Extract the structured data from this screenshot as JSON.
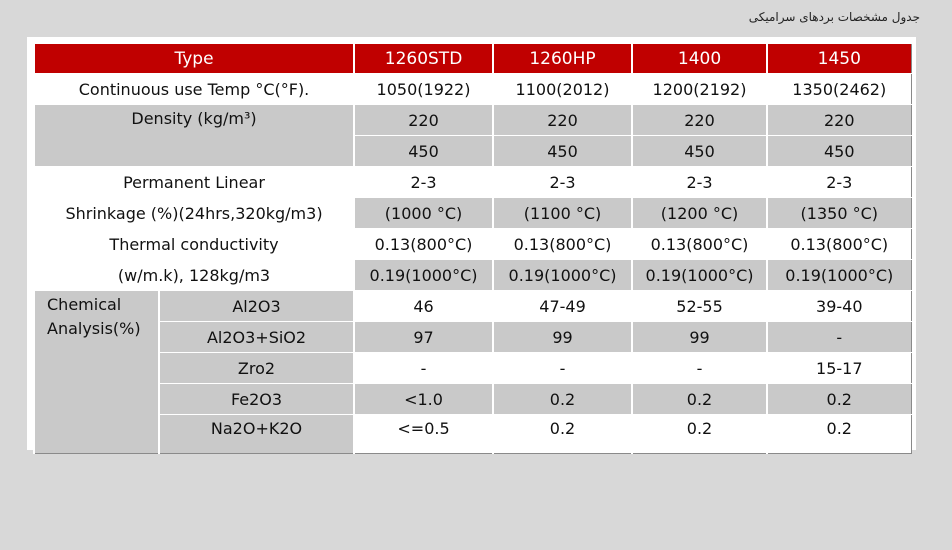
{
  "caption": "جدول مشخصات بردهای سرامیکی",
  "header": {
    "type": "Type",
    "cols": [
      "1260STD",
      "1260HP",
      "1400",
      "1450"
    ]
  },
  "rows": {
    "temp": {
      "label": "Continuous use Temp °C(°F).",
      "values": [
        "1050(1922)",
        "1100(2012)",
        "1200(2192)",
        "1350(2462)"
      ]
    },
    "density": {
      "label": "Density (kg/m³)",
      "values1": [
        "220",
        "220",
        "220",
        "220"
      ],
      "values2": [
        "450",
        "450",
        "450",
        "450"
      ]
    },
    "shrinkage": {
      "label1": "Permanent Linear",
      "label2": "Shrinkage (%)(24hrs,320kg/m3)",
      "values1": [
        "2-3",
        "2-3",
        "2-3",
        "2-3"
      ],
      "values2": [
        "(1000 °C)",
        "(1100 °C)",
        "(1200 °C)",
        "(1350 °C)"
      ]
    },
    "thermal": {
      "label1": "Thermal conductivity",
      "label2": "(w/m.k), 128kg/m3",
      "values1": [
        "0.13(800°C)",
        "0.13(800°C)",
        "0.13(800°C)",
        "0.13(800°C)"
      ],
      "values2": [
        "0.19(1000°C)",
        "0.19(1000°C)",
        "0.19(1000°C)",
        "0.19(1000°C)"
      ]
    },
    "chemical": {
      "label1": "Chemical",
      "label2": "Analysis(%)",
      "items": [
        {
          "name": "Al2O3",
          "values": [
            "46",
            "47-49",
            "52-55",
            "39-40"
          ]
        },
        {
          "name": "Al2O3+SiO2",
          "values": [
            "97",
            "99",
            "99",
            "-"
          ]
        },
        {
          "name": "Zro2",
          "values": [
            "-",
            "-",
            "-",
            "15-17"
          ]
        },
        {
          "name": "Fe2O3",
          "values": [
            "<1.0",
            "0.2",
            "0.2",
            "0.2"
          ]
        },
        {
          "name": "Na2O+K2O",
          "values": [
            "<=0.5",
            "0.2",
            "0.2",
            "0.2"
          ]
        }
      ]
    }
  }
}
